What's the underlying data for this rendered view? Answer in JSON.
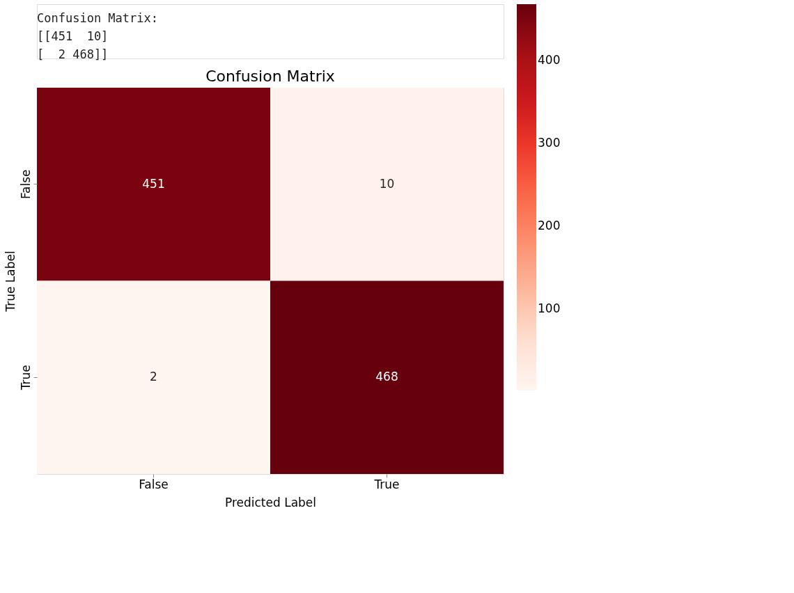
{
  "chart_data": {
    "type": "heatmap",
    "title": "Confusion Matrix",
    "categories": [
      "False",
      "True"
    ],
    "y_categories": [
      "False",
      "True"
    ],
    "cells": [
      [
        451,
        10
      ],
      [
        2,
        468
      ]
    ],
    "clim": [
      2,
      468
    ],
    "cticks": [
      100,
      200,
      300,
      400
    ],
    "xlabel": "Predicted Label",
    "ylabel": "True Label",
    "data_labels": true,
    "annotations": [
      "Confusion Matrix:",
      "[[451  10]",
      " [  2 468]]"
    ]
  }
}
